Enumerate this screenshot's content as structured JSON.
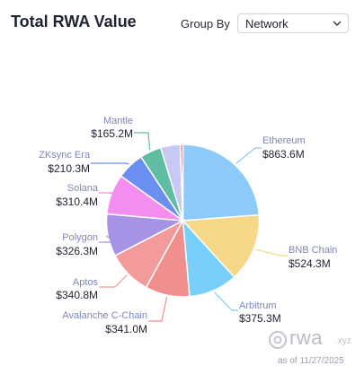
{
  "header": {
    "title": "Total RWA Value",
    "group_by_label": "Group By",
    "group_by_value": "Network"
  },
  "watermark": {
    "brand": "rwa",
    "suffix": ".xyz",
    "as_of": "as of 11/27/2025"
  },
  "chart_data": {
    "type": "pie",
    "title": "Total RWA Value",
    "slices": [
      {
        "name": "Ethereum",
        "label": "$863.6M",
        "value": 863.6,
        "color": "#8ccafc",
        "show_label": true
      },
      {
        "name": "BNB Chain",
        "label": "$524.3M",
        "value": 524.3,
        "color": "#f7d788",
        "show_label": true
      },
      {
        "name": "Arbitrum",
        "label": "$375.3M",
        "value": 375.3,
        "color": "#79cffc",
        "show_label": true
      },
      {
        "name": "Avalanche C-Chain",
        "label": "$341.0M",
        "value": 341.0,
        "color": "#f18e8e",
        "show_label": true
      },
      {
        "name": "Aptos",
        "label": "$340.8M",
        "value": 340.8,
        "color": "#f39a9a",
        "show_label": true
      },
      {
        "name": "Polygon",
        "label": "$326.3M",
        "value": 326.3,
        "color": "#a693e6",
        "show_label": true
      },
      {
        "name": "Solana",
        "label": "$310.4M",
        "value": 310.4,
        "color": "#f38df0",
        "show_label": true
      },
      {
        "name": "ZKsync Era",
        "label": "$210.3M",
        "value": 210.3,
        "color": "#6a8ff0",
        "show_label": true
      },
      {
        "name": "Mantle",
        "label": "$165.2M",
        "value": 165.2,
        "color": "#5fbea1",
        "show_label": true
      },
      {
        "name": "",
        "label": "",
        "value": 150.0,
        "color": "#c8c8f5",
        "show_label": false
      },
      {
        "name": "",
        "label": "",
        "value": 20.0,
        "color": "#f07a7a",
        "show_label": false
      }
    ]
  }
}
